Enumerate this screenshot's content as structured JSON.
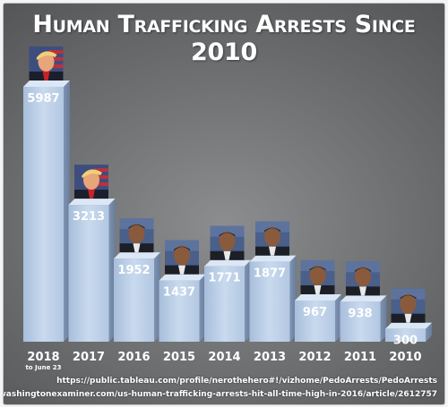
{
  "chart_data": {
    "type": "bar",
    "title": "Human Trafficking Arrests Since 2010",
    "categories": [
      "2018",
      "2017",
      "2016",
      "2015",
      "2014",
      "2013",
      "2012",
      "2011",
      "2010"
    ],
    "category_notes": [
      "to June 23",
      "",
      "",
      "",
      "",
      "",
      "",
      "",
      ""
    ],
    "values": [
      5987,
      3213,
      1952,
      1437,
      1771,
      1877,
      967,
      938,
      300
    ],
    "portrait_icons": [
      "trump-portrait-icon",
      "trump-portrait-icon",
      "obama-portrait-icon",
      "obama-portrait-icon",
      "obama-portrait-icon",
      "obama-portrait-icon",
      "obama-portrait-icon",
      "obama-portrait-icon",
      "obama-portrait-icon"
    ],
    "xlabel": "",
    "ylabel": "",
    "ylim": [
      0,
      5987
    ],
    "grid": false,
    "legend": "none",
    "bar_color": "#b9cde6"
  },
  "sources": [
    "https://public.tableau.com/profile/nerothehero#!/vizhome/PedoArrests/PedoArrests",
    "https://www.washingtonexaminer.com/us-human-trafficking-arrests-hit-all-time-high-in-2016/article/2612757"
  ]
}
